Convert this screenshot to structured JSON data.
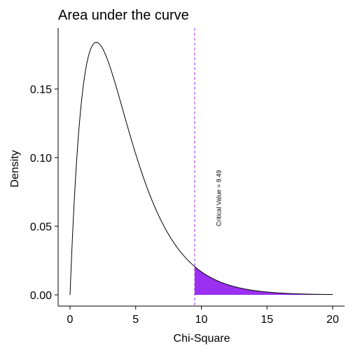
{
  "chart_data": {
    "type": "area",
    "title": "Area under the curve",
    "xlabel": "Chi-Square",
    "ylabel": "Density",
    "xlim": [
      0,
      20
    ],
    "ylim": [
      0,
      0.184
    ],
    "x_ticks": [
      0,
      5,
      10,
      15,
      20
    ],
    "x_tick_labels": [
      "0",
      "5",
      "10",
      "15",
      "20"
    ],
    "y_ticks": [
      0.0,
      0.05,
      0.1,
      0.15
    ],
    "y_tick_labels": [
      "0.00",
      "0.05",
      "0.10",
      "0.15"
    ],
    "grid": false,
    "legend": "none",
    "curve": {
      "distribution": "chi-square",
      "df": 4,
      "x_start": 0,
      "x_end": 20,
      "color": "#000000"
    },
    "shaded_region": {
      "x_from": 9.49,
      "x_to": 20,
      "color": "#9b30f0"
    },
    "critical_line": {
      "x": 9.49,
      "color": "#9b30f0",
      "style": "dashed"
    },
    "annotation": {
      "text": "Critical Value = 9.49",
      "x": 11.5,
      "y": 0.05
    }
  }
}
